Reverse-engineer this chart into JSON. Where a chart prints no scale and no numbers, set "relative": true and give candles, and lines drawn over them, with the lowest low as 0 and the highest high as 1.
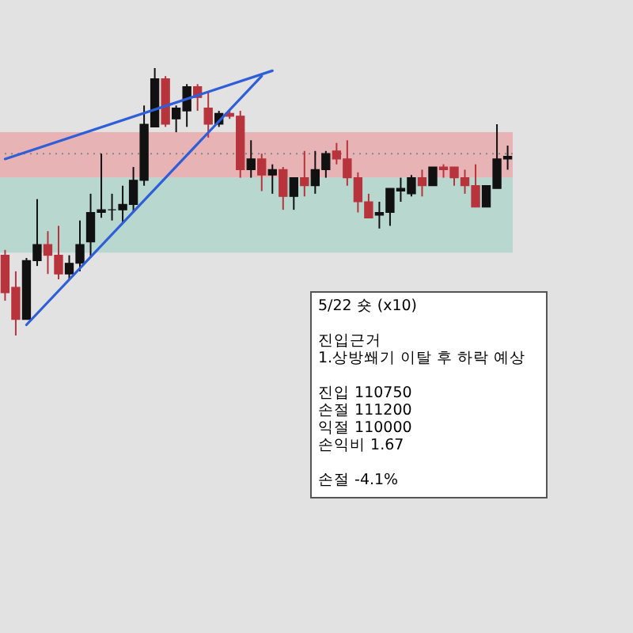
{
  "chart_data": {
    "type": "candlestick",
    "relative": true,
    "tick_labels": false,
    "categories": [
      null,
      null,
      null,
      null,
      null,
      null,
      null,
      null,
      null,
      null,
      null,
      null,
      null,
      null,
      null,
      null,
      null,
      null,
      null,
      null,
      null,
      null,
      null,
      null,
      null,
      null,
      null,
      null,
      null,
      null,
      null,
      null,
      null,
      null,
      null,
      null,
      null,
      null,
      null,
      null,
      null,
      null,
      null,
      null,
      null,
      null,
      null,
      null
    ],
    "ohlc": [
      [
        0.3,
        0.32,
        0.13,
        0.16
      ],
      [
        0.18,
        0.24,
        0,
        0.06
      ],
      [
        0.06,
        0.29,
        0.06,
        0.28
      ],
      [
        0.28,
        0.51,
        0.26,
        0.34
      ],
      [
        0.34,
        0.39,
        0.23,
        0.3
      ],
      [
        0.3,
        0.41,
        0.21,
        0.23
      ],
      [
        0.23,
        0.3,
        0.21,
        0.27
      ],
      [
        0.27,
        0.43,
        0.24,
        0.34
      ],
      [
        0.35,
        0.53,
        0.29,
        0.46
      ],
      [
        0.46,
        0.68,
        0.44,
        0.47
      ],
      [
        0.47,
        0.53,
        0.43,
        0.47
      ],
      [
        0.47,
        0.56,
        0.42,
        0.49
      ],
      [
        0.49,
        0.63,
        0.46,
        0.58
      ],
      [
        0.58,
        0.86,
        0.56,
        0.79
      ],
      [
        0.78,
        1,
        0.78,
        0.96
      ],
      [
        0.96,
        0.97,
        0.78,
        0.79
      ],
      [
        0.81,
        0.86,
        0.76,
        0.85
      ],
      [
        0.84,
        0.94,
        0.78,
        0.93
      ],
      [
        0.93,
        0.94,
        0.84,
        0.89
      ],
      [
        0.85,
        0.91,
        0.74,
        0.79
      ],
      [
        0.79,
        0.84,
        0.78,
        0.83
      ],
      [
        0.83,
        0.84,
        0.81,
        0.82
      ],
      [
        0.82,
        0.84,
        0.59,
        0.62
      ],
      [
        0.62,
        0.73,
        0.59,
        0.66
      ],
      [
        0.66,
        0.68,
        0.54,
        0.6
      ],
      [
        0.6,
        0.64,
        0.53,
        0.62
      ],
      [
        0.62,
        0.63,
        0.47,
        0.52
      ],
      [
        0.52,
        0.59,
        0.47,
        0.59
      ],
      [
        0.59,
        0.69,
        0.52,
        0.56
      ],
      [
        0.56,
        0.69,
        0.53,
        0.62
      ],
      [
        0.62,
        0.69,
        0.59,
        0.68
      ],
      [
        0.69,
        0.72,
        0.64,
        0.66
      ],
      [
        0.66,
        0.73,
        0.56,
        0.59
      ],
      [
        0.59,
        0.61,
        0.46,
        0.5
      ],
      [
        0.5,
        0.53,
        0.44,
        0.44
      ],
      [
        0.45,
        0.5,
        0.4,
        0.46
      ],
      [
        0.46,
        0.55,
        0.41,
        0.55
      ],
      [
        0.54,
        0.59,
        0.5,
        0.55
      ],
      [
        0.53,
        0.6,
        0.52,
        0.59
      ],
      [
        0.59,
        0.62,
        0.52,
        0.56
      ],
      [
        0.56,
        0.63,
        0.56,
        0.63
      ],
      [
        0.63,
        0.64,
        0.59,
        0.62
      ],
      [
        0.63,
        0.63,
        0.56,
        0.59
      ],
      [
        0.59,
        0.62,
        0.53,
        0.56
      ],
      [
        0.56,
        0.64,
        0.48,
        0.48
      ],
      [
        0.48,
        0.56,
        0.48,
        0.56
      ],
      [
        0.55,
        0.79,
        0.55,
        0.66
      ],
      [
        0.66,
        0.71,
        0.62,
        0.67
      ]
    ],
    "colors": [
      "#b8343c",
      "#b8343c",
      "#111111",
      "#111111",
      "#b8343c",
      "#b8343c",
      "#111111",
      "#111111",
      "#111111",
      "#111111",
      "#111111",
      "#111111",
      "#111111",
      "#111111",
      "#111111",
      "#b8343c",
      "#111111",
      "#111111",
      "#b8343c",
      "#b8343c",
      "#111111",
      "#b8343c",
      "#b8343c",
      "#111111",
      "#b8343c",
      "#111111",
      "#b8343c",
      "#111111",
      "#b8343c",
      "#111111",
      "#111111",
      "#b8343c",
      "#b8343c",
      "#b8343c",
      "#b8343c",
      "#111111",
      "#111111",
      "#111111",
      "#111111",
      "#b8343c",
      "#111111",
      "#b8343c",
      "#b8343c",
      "#b8343c",
      "#b8343c",
      "#111111",
      "#111111",
      "#111111"
    ],
    "series": [
      {
        "type": "line",
        "color": "#2f5fd8",
        "values": [
          null,
          null,
          0.04,
          null,
          null,
          null,
          null,
          null,
          null,
          null,
          null,
          null,
          null,
          null,
          null,
          null,
          null,
          null,
          null,
          null,
          null,
          null,
          null,
          null,
          0.97,
          null,
          null,
          null,
          null,
          null,
          null,
          null,
          null,
          null,
          null,
          null,
          null,
          null,
          null,
          null,
          null,
          null,
          null,
          null,
          null,
          null,
          null,
          null
        ]
      },
      {
        "type": "line",
        "color": "#2f5fd8",
        "values": [
          0.66,
          null,
          null,
          null,
          null,
          null,
          null,
          null,
          null,
          null,
          null,
          null,
          null,
          null,
          null,
          null,
          null,
          null,
          null,
          null,
          null,
          null,
          null,
          null,
          null,
          0.99,
          null,
          null,
          null,
          null,
          null,
          null,
          null,
          null,
          null,
          null,
          null,
          null,
          null,
          null,
          null,
          null,
          null,
          null,
          null,
          null,
          null,
          null
        ]
      }
    ],
    "ref_lines": [
      {
        "axis": "y",
        "value": 0.68,
        "color": "#888888",
        "line_style": "dotted"
      }
    ],
    "bands": [
      {
        "axis": "y",
        "from": 0.59,
        "to": 0.76,
        "color": "#e8a3a6"
      },
      {
        "axis": "y",
        "from": 0.31,
        "to": 0.59,
        "color": "#a9d3c8"
      }
    ],
    "annotations": [
      "5/22 숏 (x10)",
      "진입근거\n1.상방쐐기 이탈 후 하락 예상",
      "진입 110750\n손절 111200\n익절 110000\n손익비 1.67",
      "손절 -4.1%"
    ]
  }
}
